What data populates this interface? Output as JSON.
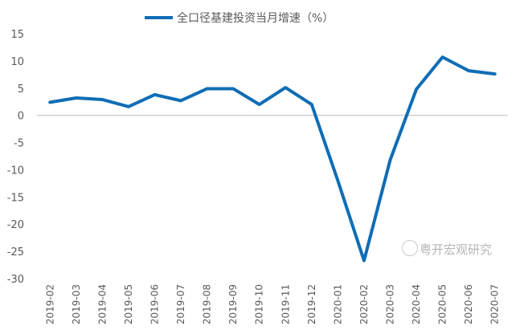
{
  "chart_data": {
    "type": "line",
    "title": "",
    "xlabel": "",
    "ylabel": "",
    "categories": [
      "2019-02",
      "2019-03",
      "2019-04",
      "2019-05",
      "2019-06",
      "2019-07",
      "2019-08",
      "2019-09",
      "2019-10",
      "2019-11",
      "2019-12",
      "2020-01",
      "2020-02",
      "2020-03",
      "2020-04",
      "2020-05",
      "2020-06",
      "2020-07"
    ],
    "series": [
      {
        "name": "全口径基建投资当月增速（%）",
        "color": "#0f6db5",
        "values": [
          2.4,
          3.2,
          2.9,
          1.6,
          3.8,
          2.7,
          4.9,
          4.9,
          2.0,
          5.1,
          2.0,
          -12.0,
          -26.7,
          -8.2,
          4.8,
          10.7,
          8.2,
          7.6
        ]
      }
    ],
    "ylim": [
      -30,
      15
    ],
    "yticks": [
      15,
      10,
      5,
      0,
      -5,
      -10,
      -15,
      -20,
      -25,
      -30
    ],
    "grid": false,
    "zero_line": true,
    "legend": "top-center"
  },
  "watermark": "粤开宏观研究"
}
